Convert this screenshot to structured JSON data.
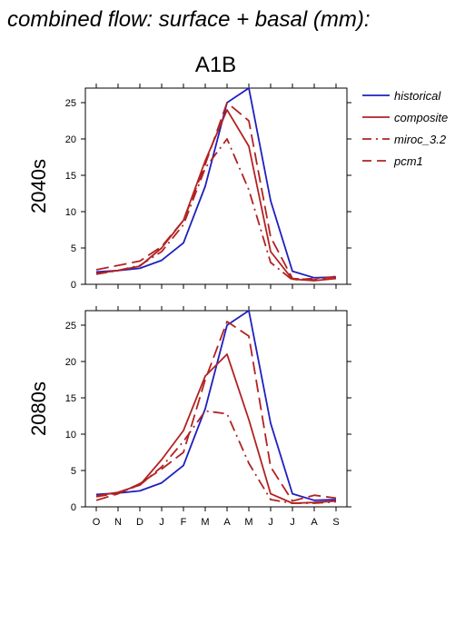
{
  "title": "combined flow: surface + basal (mm):",
  "scenario": "A1B",
  "colors": {
    "historical": "#1f1fbf",
    "models": "#b22222",
    "axis": "#000000"
  },
  "chart_data": [
    {
      "type": "line",
      "row_label": "2040s",
      "categories": [
        "O",
        "N",
        "D",
        "J",
        "F",
        "M",
        "A",
        "M",
        "J",
        "J",
        "A",
        "S"
      ],
      "ylim": [
        0,
        27
      ],
      "yticks": [
        0,
        5,
        10,
        15,
        20,
        25
      ],
      "series": [
        {
          "name": "historical",
          "style": "solid",
          "color": "#1f1fbf",
          "values": [
            1.7,
            1.9,
            2.2,
            3.3,
            5.7,
            13.5,
            25.0,
            27.0,
            11.5,
            1.8,
            0.9,
            1.0
          ]
        },
        {
          "name": "composite",
          "style": "solid",
          "color": "#b22222",
          "values": [
            1.5,
            1.9,
            2.5,
            5.0,
            8.8,
            17.0,
            24.0,
            19.0,
            4.5,
            0.7,
            0.5,
            0.8
          ]
        },
        {
          "name": "miroc_3.2",
          "style": "dashdot",
          "color": "#b22222",
          "values": [
            1.4,
            1.9,
            2.6,
            4.5,
            8.2,
            16.0,
            20.0,
            13.0,
            3.0,
            0.6,
            0.8,
            1.0
          ]
        },
        {
          "name": "pcm1",
          "style": "dashed",
          "color": "#b22222",
          "values": [
            2.0,
            2.6,
            3.2,
            5.2,
            8.8,
            16.5,
            25.0,
            22.5,
            6.5,
            0.8,
            0.6,
            1.1
          ]
        }
      ]
    },
    {
      "type": "line",
      "row_label": "2080s",
      "categories": [
        "O",
        "N",
        "D",
        "J",
        "F",
        "M",
        "A",
        "M",
        "J",
        "J",
        "A",
        "S"
      ],
      "ylim": [
        0,
        27
      ],
      "yticks": [
        0,
        5,
        10,
        15,
        20,
        25
      ],
      "series": [
        {
          "name": "historical",
          "style": "solid",
          "color": "#1f1fbf",
          "values": [
            1.7,
            1.9,
            2.2,
            3.3,
            5.7,
            13.5,
            25.0,
            27.0,
            11.5,
            1.8,
            0.9,
            1.0
          ]
        },
        {
          "name": "composite",
          "style": "solid",
          "color": "#b22222",
          "values": [
            1.5,
            2.0,
            3.0,
            6.5,
            10.5,
            18.0,
            21.0,
            12.0,
            1.8,
            0.5,
            0.6,
            0.8
          ]
        },
        {
          "name": "miroc_3.2",
          "style": "dashdot",
          "color": "#b22222",
          "values": [
            1.4,
            1.9,
            3.0,
            5.5,
            9.0,
            13.2,
            12.8,
            6.0,
            1.0,
            0.5,
            0.5,
            0.7
          ]
        },
        {
          "name": "pcm1",
          "style": "dashed",
          "color": "#b22222",
          "values": [
            0.9,
            1.8,
            3.2,
            5.2,
            7.5,
            17.5,
            25.5,
            23.5,
            5.5,
            0.8,
            1.6,
            1.2
          ]
        }
      ]
    }
  ],
  "legend": {
    "placement": "right",
    "entries": [
      {
        "label": "historical",
        "style": "solid",
        "color": "#1f1fbf"
      },
      {
        "label": "composite",
        "style": "solid",
        "color": "#b22222"
      },
      {
        "label": "miroc_3.2",
        "style": "dashdot",
        "color": "#b22222"
      },
      {
        "label": "pcm1",
        "style": "dashed",
        "color": "#b22222"
      }
    ]
  }
}
